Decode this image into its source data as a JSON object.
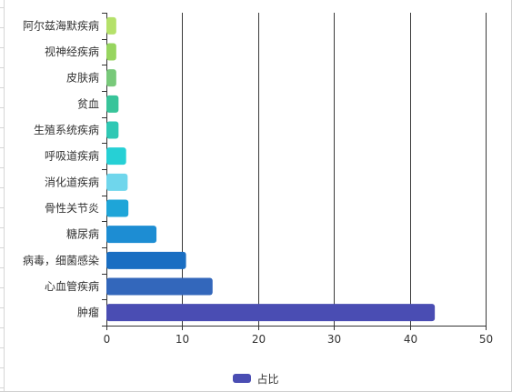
{
  "chart_data": {
    "type": "bar",
    "orientation": "horizontal",
    "categories": [
      "阿尔兹海默疾病",
      "视神经疾病",
      "皮肤病",
      "贫血",
      "生殖系统疾病",
      "呼吸道疾病",
      "消化道疾病",
      "骨性关节炎",
      "糖尿病",
      "病毒，细菌感染",
      "心血管疾病",
      "肿瘤"
    ],
    "series": [
      {
        "name": "占比",
        "values": [
          1.3,
          1.3,
          1.3,
          1.6,
          1.6,
          2.6,
          2.8,
          2.9,
          6.6,
          10.5,
          14.0,
          43.3
        ],
        "colors": [
          "#b5e16a",
          "#97d55f",
          "#78c97a",
          "#38c49a",
          "#2fc8b4",
          "#26d0d5",
          "#6fd6ec",
          "#1ea5d8",
          "#1d8dd3",
          "#1a6ec2",
          "#3367bb",
          "#4a4db3"
        ]
      }
    ],
    "xlim": [
      0,
      50
    ],
    "xticks": [
      0,
      10,
      20,
      30,
      40,
      50
    ],
    "grid": "vertical",
    "legend_position": "bottom-center"
  }
}
